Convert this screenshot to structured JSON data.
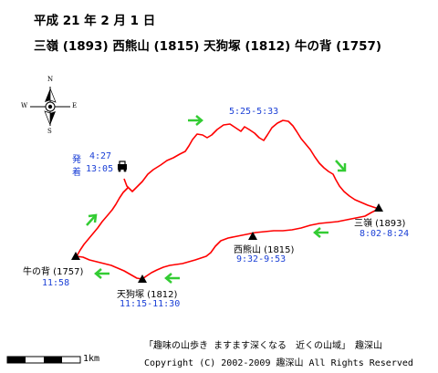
{
  "header": {
    "date": "平成 21 年 2 月 1 日",
    "route": "三嶺 (1893)  西熊山 (1815)  天狗塚 (1812)  牛の背 (1757)"
  },
  "compass": {
    "n": "N",
    "s": "S",
    "e": "E",
    "w": "W"
  },
  "start": {
    "depart_label": "発",
    "depart_time": "4:27",
    "arrive_label": "着",
    "arrive_time": "13:05"
  },
  "waypoints": [
    {
      "name": "",
      "time": "5:25-5:33"
    },
    {
      "name": "三嶺 (1893)",
      "time": "8:02-8:24"
    },
    {
      "name": "西熊山 (1815)",
      "time": "9:32-9:53"
    },
    {
      "name": "天狗塚 (1812)",
      "time": "11:15-11:30"
    },
    {
      "name": "牛の背 (1757)",
      "time": "11:58"
    }
  ],
  "scale": {
    "label": "1km"
  },
  "footer": {
    "caption": "「趣味の山歩き ますます深くなる　近くの山域」　趣深山",
    "copyright": "Copyright (C) 2002-2009 趣深山 All Rights Reserved"
  },
  "colors": {
    "route": "#ff0000",
    "arrow": "#33cc33",
    "time": "#1a3fd6"
  }
}
